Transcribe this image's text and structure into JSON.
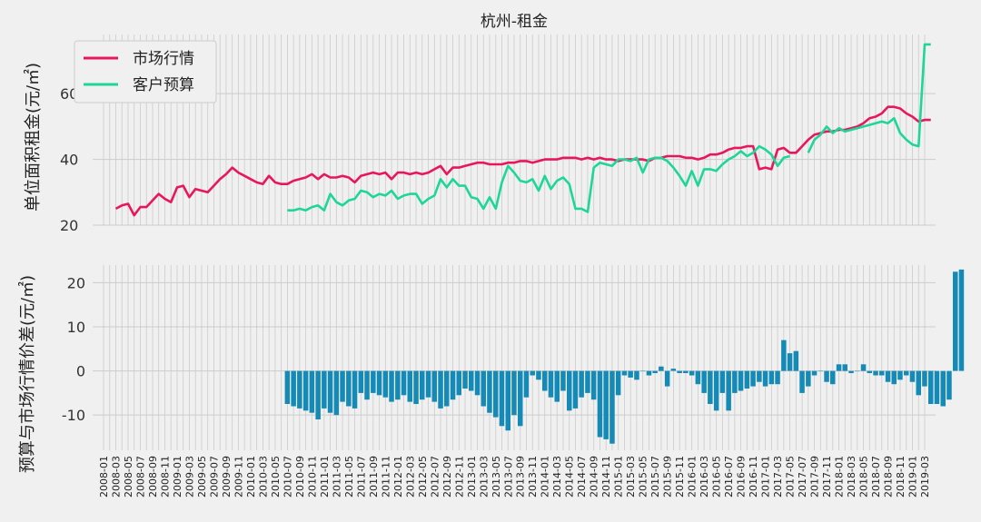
{
  "chart_data": [
    {
      "type": "line",
      "title": "杭州-租金",
      "ylabel": "单位面积租金(元/㎡)",
      "xlabel": "",
      "ylim": [
        20,
        78
      ],
      "yticks": [
        20,
        40,
        60
      ],
      "grid": true,
      "legend_position": "top-left",
      "series": [
        {
          "name": "市场行情",
          "color": "#e8175d",
          "start": "2008-03",
          "values": [
            25.0,
            26.0,
            26.5,
            23.0,
            25.5,
            25.5,
            27.5,
            29.5,
            28.0,
            27.0,
            31.5,
            32.0,
            28.5,
            31.0,
            30.5,
            30.0,
            32.0,
            34.0,
            35.5,
            37.5,
            36.0,
            35.0,
            34.0,
            33.0,
            32.5,
            35.0,
            33.0,
            32.5,
            32.5,
            33.5,
            34.0,
            34.5,
            35.5,
            34.0,
            35.5,
            34.5,
            34.5,
            35.0,
            34.5,
            33.0,
            35.0,
            35.5,
            36.0,
            35.5,
            36.0,
            34.0,
            36.0,
            36.0,
            35.5,
            36.0,
            35.5,
            36.0,
            37.0,
            38.0,
            35.5,
            37.5,
            37.5,
            38.0,
            38.5,
            39.0,
            39.0,
            38.5,
            38.5,
            38.5,
            39.0,
            39.0,
            39.5,
            39.5,
            39.0,
            39.5,
            40.0,
            40.0,
            40.0,
            40.5,
            40.5,
            40.5,
            40.0,
            40.5,
            40.0,
            40.5,
            40.0,
            40.0,
            39.5,
            40.0,
            40.0,
            40.0,
            40.0,
            39.5,
            40.5,
            40.5,
            41.0,
            41.0,
            41.0,
            40.5,
            40.5,
            40.0,
            40.5,
            41.5,
            41.5,
            42.0,
            43.0,
            43.5,
            43.5,
            44.0,
            44.0,
            37.0,
            37.5,
            37.0,
            43.0,
            43.5,
            42.0,
            42.0,
            44.0,
            46.0,
            47.5,
            48.0,
            48.5,
            48.5,
            49.0,
            49.0,
            49.5,
            50.0,
            51.0,
            52.5,
            53.0,
            54.0,
            56.0,
            56.0,
            55.5,
            54.0,
            53.0,
            51.5,
            52.0,
            52.0
          ]
        },
        {
          "name": "客户预算",
          "color": "#1ed698",
          "start": "2010-07",
          "values": [
            24.5,
            24.5,
            25.0,
            24.5,
            25.5,
            26.0,
            24.5,
            29.5,
            27.0,
            26.0,
            27.5,
            28.0,
            30.5,
            30.0,
            28.5,
            29.5,
            29.0,
            30.5,
            28.0,
            29.0,
            29.5,
            29.5,
            26.5,
            28.0,
            29.0,
            34.0,
            31.5,
            34.0,
            32.0,
            32.0,
            28.5,
            28.0,
            25.0,
            28.5,
            25.0,
            33.0,
            38.0,
            36.0,
            33.5,
            33.0,
            34.0,
            30.5,
            35.0,
            31.0,
            33.5,
            34.5,
            32.5,
            25.0,
            25.0,
            24.0,
            37.5,
            39.0,
            38.5,
            38.0,
            40.0,
            40.0,
            39.5,
            40.5,
            36.0,
            40.0,
            40.5,
            40.5,
            39.5,
            37.5,
            35.0,
            32.0,
            36.5,
            32.0,
            37.0,
            37.0,
            36.5,
            38.5,
            40.0,
            41.0,
            42.5,
            41.0,
            42.0,
            44.0,
            43.0,
            41.5,
            38.0,
            40.5,
            41.0,
            null,
            null,
            42.0,
            46.0,
            47.5,
            50.0,
            48.0,
            49.5,
            48.5,
            49.0,
            49.5,
            50.0,
            50.5,
            51.0,
            51.5,
            51.0,
            52.5,
            48.0,
            46.0,
            44.5,
            44.0,
            75.0,
            75.0
          ]
        }
      ]
    },
    {
      "type": "bar",
      "ylabel": "预算与市场行情价差(元/㎡)",
      "xlabel": "",
      "ylim": [
        -18,
        24
      ],
      "yticks": [
        -10,
        0,
        10,
        20
      ],
      "grid": true,
      "bar_color": "#168ab6",
      "start": "2010-07",
      "values": [
        -7.5,
        -8.0,
        -8.5,
        -9.0,
        -9.5,
        -11.0,
        -8.5,
        -9.5,
        -10.0,
        -7.0,
        -8.0,
        -8.5,
        -5.0,
        -6.5,
        -5.0,
        -5.5,
        -6.0,
        -7.0,
        -6.5,
        -5.5,
        -7.0,
        -7.5,
        -6.5,
        -6.0,
        -7.0,
        -8.5,
        -8.0,
        -6.5,
        -5.5,
        -4.0,
        -4.5,
        -5.5,
        -8.0,
        -9.5,
        -10.5,
        -12.5,
        -13.5,
        -10.0,
        -12.5,
        -6.0,
        -1.0,
        -2.0,
        -4.5,
        -6.0,
        -7.0,
        -4.5,
        -9.0,
        -8.5,
        -6.0,
        -5.0,
        -6.5,
        -15.0,
        -15.5,
        -16.5,
        -5.5,
        -1.0,
        -1.5,
        -2.0,
        0.0,
        -1.0,
        -0.5,
        1.0,
        -3.5,
        0.5,
        -0.5,
        -0.5,
        -1.0,
        -3.0,
        -5.0,
        -7.5,
        -9.0,
        -5.0,
        -9.0,
        -5.0,
        -4.5,
        -4.0,
        -3.5,
        -2.5,
        -3.5,
        -3.0,
        -3.0,
        7.0,
        4.0,
        4.5,
        -5.0,
        -3.5,
        -1.0,
        0.0,
        -2.5,
        -3.0,
        1.5,
        1.5,
        -0.5,
        0.0,
        1.5,
        -0.5,
        -1.0,
        -1.0,
        -2.5,
        -3.0,
        -2.0,
        -1.0,
        -2.5,
        -5.5,
        -3.5,
        -7.5,
        -7.5,
        -8.0,
        -6.5,
        22.5,
        23.0
      ]
    }
  ],
  "x_axis": {
    "start": "2008-01",
    "end": "2019-03",
    "tick_labels": [
      "2008-01",
      "2008-03",
      "2008-05",
      "2008-07",
      "2008-09",
      "2008-11",
      "2009-01",
      "2009-03",
      "2009-05",
      "2009-07",
      "2009-09",
      "2009-11",
      "2010-01",
      "2010-03",
      "2010-05",
      "2010-07",
      "2010-09",
      "2010-11",
      "2011-01",
      "2011-03",
      "2011-05",
      "2011-07",
      "2011-09",
      "2011-11",
      "2012-01",
      "2012-03",
      "2012-05",
      "2012-07",
      "2012-09",
      "2012-11",
      "2013-01",
      "2013-03",
      "2013-05",
      "2013-07",
      "2013-09",
      "2013-11",
      "2014-01",
      "2014-03",
      "2014-05",
      "2014-07",
      "2014-09",
      "2014-11",
      "2015-01",
      "2015-03",
      "2015-05",
      "2015-07",
      "2015-09",
      "2015-11",
      "2016-01",
      "2016-03",
      "2016-05",
      "2016-07",
      "2016-09",
      "2016-11",
      "2017-01",
      "2017-03",
      "2017-05",
      "2017-07",
      "2017-09",
      "2017-11",
      "2018-01",
      "2018-03",
      "2018-05",
      "2018-07",
      "2018-09",
      "2018-11",
      "2019-01",
      "2019-03"
    ]
  }
}
